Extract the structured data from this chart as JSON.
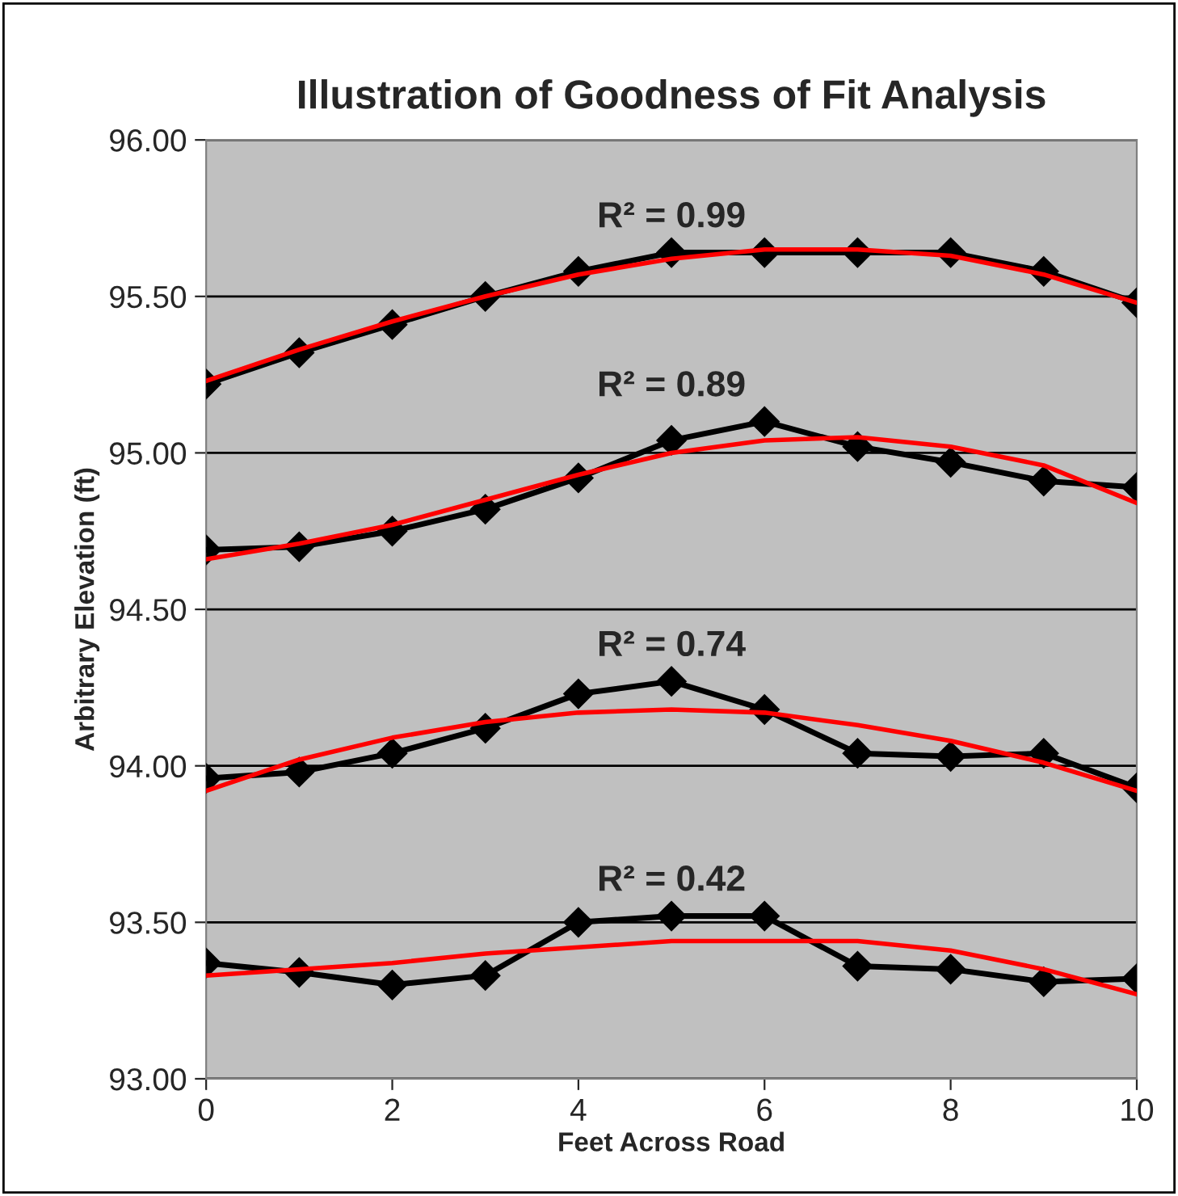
{
  "chart_data": {
    "type": "line",
    "title": "Illustration of Goodness of Fit Analysis",
    "xlabel": "Feet Across Road",
    "ylabel": "Arbitrary Elevation (ft)",
    "x": [
      0,
      1,
      2,
      3,
      4,
      5,
      6,
      7,
      8,
      9,
      10
    ],
    "series": [
      {
        "color": "#000000",
        "marker": "diamond",
        "values": [
          95.22,
          95.32,
          95.41,
          95.5,
          95.58,
          95.64,
          95.64,
          95.64,
          95.64,
          95.58,
          95.48
        ]
      },
      {
        "color": "#ff0000",
        "marker": "none",
        "values": [
          95.23,
          95.33,
          95.42,
          95.5,
          95.57,
          95.62,
          95.65,
          95.65,
          95.63,
          95.57,
          95.48
        ]
      },
      {
        "color": "#000000",
        "marker": "diamond",
        "values": [
          94.69,
          94.7,
          94.75,
          94.82,
          94.92,
          95.04,
          95.1,
          95.02,
          94.97,
          94.91,
          94.89
        ]
      },
      {
        "color": "#ff0000",
        "marker": "none",
        "values": [
          94.66,
          94.71,
          94.77,
          94.85,
          94.93,
          95.0,
          95.04,
          95.05,
          95.02,
          94.96,
          94.84
        ]
      },
      {
        "color": "#000000",
        "marker": "diamond",
        "values": [
          93.96,
          93.98,
          94.04,
          94.12,
          94.23,
          94.27,
          94.18,
          94.04,
          94.03,
          94.04,
          93.93
        ]
      },
      {
        "color": "#ff0000",
        "marker": "none",
        "values": [
          93.92,
          94.02,
          94.09,
          94.14,
          94.17,
          94.18,
          94.17,
          94.13,
          94.08,
          94.01,
          93.92
        ]
      },
      {
        "color": "#000000",
        "marker": "diamond",
        "values": [
          93.37,
          93.34,
          93.3,
          93.33,
          93.5,
          93.52,
          93.52,
          93.36,
          93.35,
          93.31,
          93.32
        ]
      },
      {
        "color": "#ff0000",
        "marker": "none",
        "values": [
          93.33,
          93.35,
          93.37,
          93.4,
          93.42,
          93.44,
          93.44,
          93.44,
          93.41,
          93.35,
          93.27
        ]
      }
    ],
    "annotations": [
      "R² = 0.99",
      "R² = 0.89",
      "R² = 0.74",
      "R² = 0.42"
    ],
    "xlim": [
      0,
      10
    ],
    "xticks": [
      0,
      2,
      4,
      6,
      8,
      10
    ],
    "ylim": [
      93.0,
      96.0
    ],
    "yticks": [
      {
        "value": 93.0,
        "label": "93.00"
      },
      {
        "value": 93.5,
        "label": "93.50"
      },
      {
        "value": 94.0,
        "label": "94.00"
      },
      {
        "value": 94.5,
        "label": "94.50"
      },
      {
        "value": 95.0,
        "label": "95.00"
      },
      {
        "value": 95.5,
        "label": "95.50"
      },
      {
        "value": 96.0,
        "label": "96.00"
      }
    ],
    "grid": "y",
    "legend": false,
    "line_style": "solid"
  }
}
